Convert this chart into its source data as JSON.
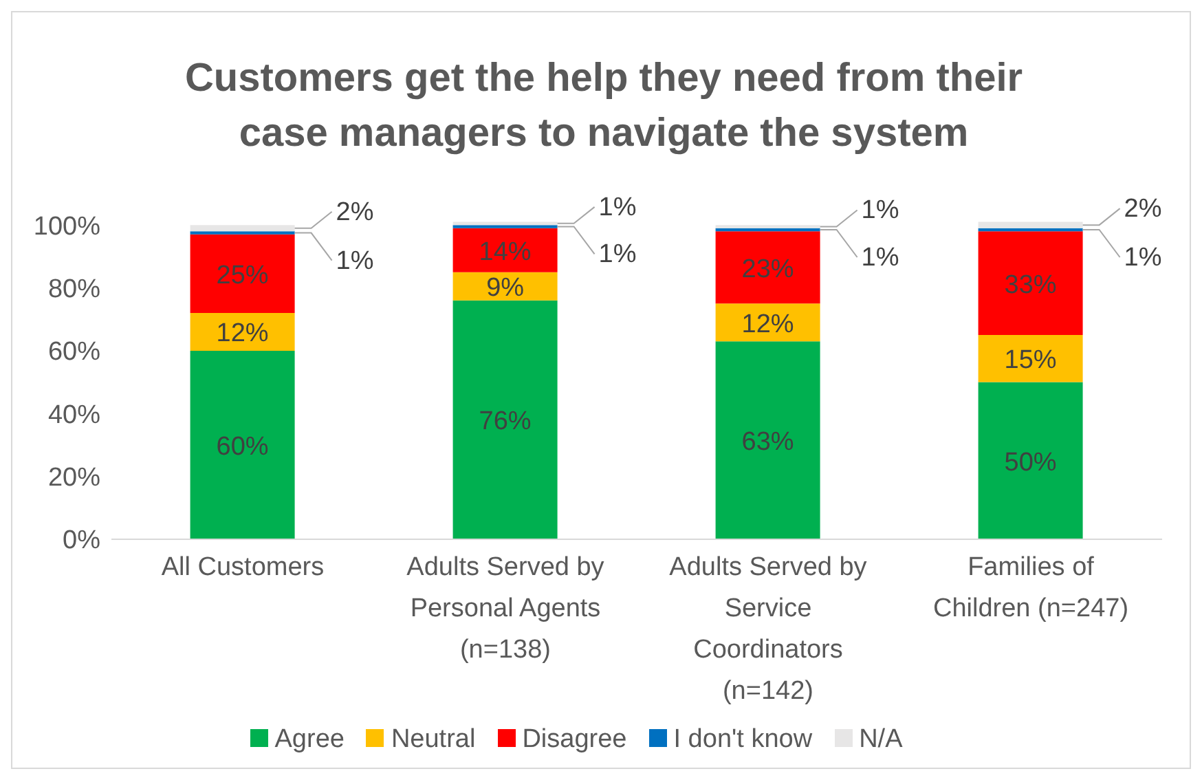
{
  "chart_data": {
    "type": "bar",
    "stacked": true,
    "title": "Customers get the help they need from their case managers to navigate the system",
    "categories": [
      "All Customers",
      "Adults Served by Personal Agents (n=138)",
      "Adults Served by Service Coordinators (n=142)",
      "Families of Children (n=247)"
    ],
    "series": [
      {
        "name": "Agree",
        "color": "#00b050",
        "values": [
          60,
          76,
          63,
          50
        ],
        "value_labels": [
          "60%",
          "76%",
          "63%",
          "50%"
        ]
      },
      {
        "name": "Neutral",
        "color": "#ffc000",
        "values": [
          12,
          9,
          12,
          15
        ],
        "value_labels": [
          "12%",
          "9%",
          "12%",
          "15%"
        ]
      },
      {
        "name": "Disagree",
        "color": "#ff0000",
        "values": [
          25,
          14,
          23,
          33
        ],
        "value_labels": [
          "25%",
          "14%",
          "23%",
          "33%"
        ]
      },
      {
        "name": "I don't know",
        "color": "#0070c0",
        "values": [
          1,
          1,
          1,
          1
        ],
        "value_labels": [
          "1%",
          "1%",
          "1%",
          "1%"
        ]
      },
      {
        "name": "N/A",
        "color": "#e7e6e6",
        "values": [
          2,
          1,
          1,
          2
        ],
        "value_labels": [
          "2%",
          "1%",
          "1%",
          "2%"
        ]
      }
    ],
    "ylim": [
      0,
      102
    ],
    "yticks": [
      {
        "value": 0,
        "label": "0%"
      },
      {
        "value": 20,
        "label": "20%"
      },
      {
        "value": 40,
        "label": "40%"
      },
      {
        "value": 60,
        "label": "60%"
      },
      {
        "value": 80,
        "label": "80%"
      },
      {
        "value": 100,
        "label": "100%"
      }
    ],
    "grid": false,
    "legend": "bottom"
  }
}
